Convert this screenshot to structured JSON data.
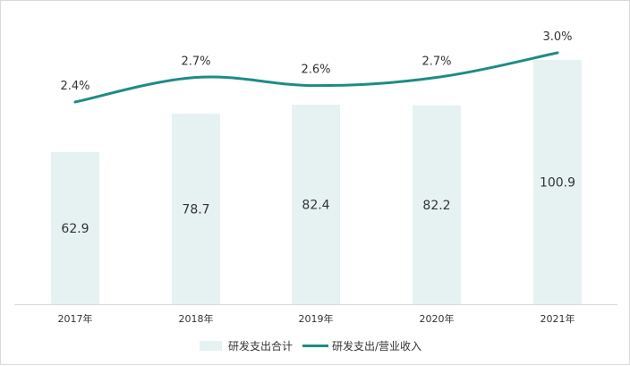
{
  "chart_data": {
    "type": "bar",
    "categories": [
      "2017年",
      "2018年",
      "2019年",
      "2020年",
      "2021年"
    ],
    "series": [
      {
        "name": "研发支出合计",
        "type": "bar",
        "values": [
          62.9,
          78.7,
          82.4,
          82.2,
          100.9
        ],
        "labels": [
          "62.9",
          "78.7",
          "82.4",
          "82.2",
          "100.9"
        ],
        "color": "#e6f2f1"
      },
      {
        "name": "研发支出/营业收入",
        "type": "line",
        "values": [
          2.4,
          2.7,
          2.6,
          2.7,
          3.0
        ],
        "labels": [
          "2.4%",
          "2.7%",
          "2.6%",
          "2.7%",
          "3.0%"
        ],
        "color": "#1e8c84"
      }
    ],
    "legend_position": "bottom",
    "grid": false,
    "ylim_bar": [
      0,
      120
    ],
    "ylim_line": [
      0,
      3.3
    ]
  }
}
